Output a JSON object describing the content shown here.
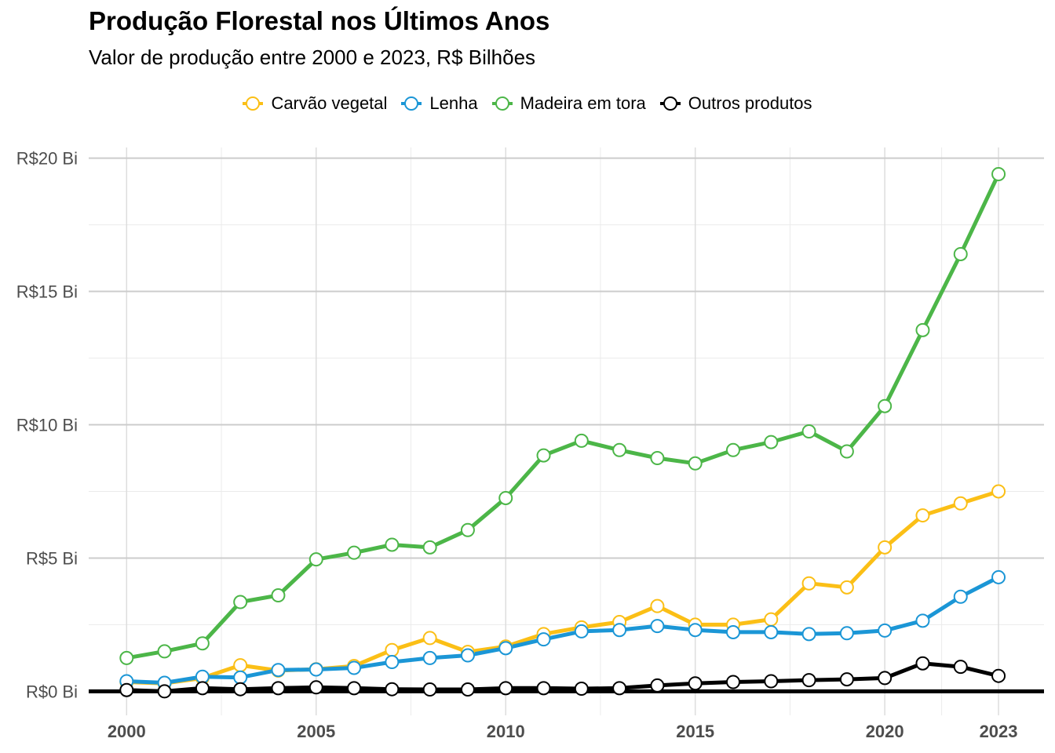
{
  "title": "Produção Florestal nos Últimos Anos",
  "subtitle": "Valor de produção entre 2000 e 2023, R$ Bilhões",
  "legend": [
    {
      "label": "Carvão vegetal",
      "color": "#FBBF16"
    },
    {
      "label": "Lenha",
      "color": "#1B96D6"
    },
    {
      "label": "Madeira em tora",
      "color": "#4CB648"
    },
    {
      "label": "Outros produtos",
      "color": "#000000"
    }
  ],
  "chart_data": {
    "type": "line",
    "title": "Produção Florestal nos Últimos Anos",
    "subtitle": "Valor de produção entre 2000 e 2023, R$ Bilhões",
    "xlabel": "",
    "ylabel": "",
    "x": [
      2000,
      2001,
      2002,
      2003,
      2004,
      2005,
      2006,
      2007,
      2008,
      2009,
      2010,
      2011,
      2012,
      2013,
      2014,
      2015,
      2016,
      2017,
      2018,
      2019,
      2020,
      2021,
      2022,
      2023
    ],
    "x_ticks": [
      "2000",
      "2005",
      "2010",
      "2015",
      "2020",
      "2023"
    ],
    "x_tick_values": [
      2000,
      2005,
      2010,
      2015,
      2020,
      2023
    ],
    "xlim": [
      1999.0,
      2024.2
    ],
    "y_ticks": [
      "R$0 Bi",
      "R$5 Bi",
      "R$10 Bi",
      "R$15 Bi",
      "R$20 Bi"
    ],
    "y_tick_values": [
      0,
      5,
      10,
      15,
      20
    ],
    "ylim": [
      -0.9,
      20.4
    ],
    "grid": true,
    "legend_position": "top",
    "series": [
      {
        "name": "Carvão vegetal",
        "color": "#FBBF16",
        "values": [
          0.35,
          0.3,
          0.5,
          0.98,
          0.78,
          0.83,
          0.95,
          1.55,
          2.0,
          1.48,
          1.68,
          2.15,
          2.4,
          2.6,
          3.2,
          2.5,
          2.5,
          2.7,
          4.05,
          3.9,
          5.4,
          6.6,
          7.05,
          7.5
        ]
      },
      {
        "name": "Lenha",
        "color": "#1B96D6",
        "values": [
          0.38,
          0.32,
          0.55,
          0.52,
          0.8,
          0.82,
          0.88,
          1.1,
          1.25,
          1.35,
          1.62,
          1.95,
          2.25,
          2.3,
          2.45,
          2.3,
          2.22,
          2.22,
          2.15,
          2.18,
          2.28,
          2.65,
          3.55,
          4.28
        ]
      },
      {
        "name": "Madeira em tora",
        "color": "#4CB648",
        "values": [
          1.25,
          1.5,
          1.8,
          3.35,
          3.6,
          4.95,
          5.2,
          5.5,
          5.4,
          6.05,
          7.25,
          8.85,
          9.4,
          9.05,
          8.75,
          8.55,
          9.05,
          9.35,
          9.75,
          9.0,
          10.7,
          13.55,
          16.4,
          19.4
        ]
      },
      {
        "name": "Outros produtos",
        "color": "#000000",
        "values": [
          0.05,
          0.0,
          0.12,
          0.08,
          0.12,
          0.15,
          0.12,
          0.08,
          0.07,
          0.07,
          0.12,
          0.12,
          0.1,
          0.12,
          0.22,
          0.3,
          0.35,
          0.38,
          0.42,
          0.45,
          0.5,
          1.05,
          0.92,
          0.58
        ]
      }
    ]
  }
}
